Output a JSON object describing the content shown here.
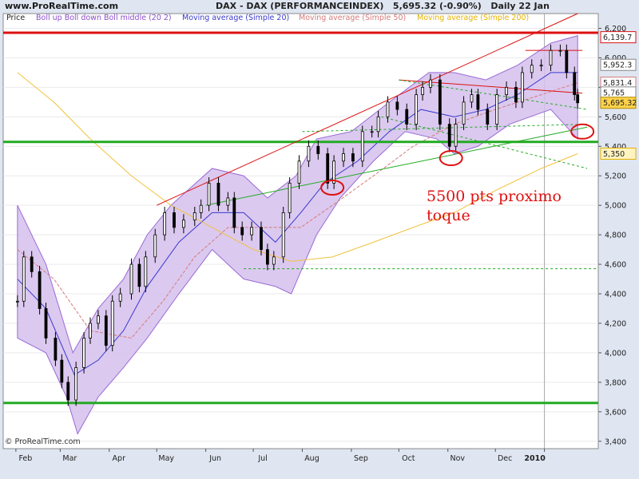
{
  "header": {
    "site": "www.ProRealTime.com",
    "title_instrument": "DAX - DAX (PERFORMANCEINDEX)",
    "title_last": "5,695.32 (-0.90%)",
    "title_period": "Daily 22 Jan"
  },
  "legend": {
    "price": "Price",
    "boll": "Boll up Boll down Boll middle (20 2)",
    "ma20": "Moving average (Simple 20)",
    "ma50": "Moving average (Simple 50)",
    "ma200": "Moving average (Simple 200)"
  },
  "footer": {
    "copyright": "© ProRealTime.com"
  },
  "annotation": {
    "line1": "5500 pts proximo",
    "line2": "toque"
  },
  "colors": {
    "price": "#000000",
    "boll_fill": "#d5c0ec",
    "boll_line": "#9b6bd6",
    "ma20": "#3a3ad0",
    "ma50": "#d67a7a",
    "ma200": "#f2c23c",
    "support": "#22aa22",
    "resistance": "#dd1111",
    "background": "#ffffff",
    "panel": "#dfe6f1"
  },
  "chart_data": {
    "type": "candlestick",
    "ylim": [
      3350,
      6300
    ],
    "y_ticks": [
      "3,400",
      "3,600",
      "3,800",
      "4,000",
      "4,200",
      "4,400",
      "4,600",
      "4,800",
      "5,000",
      "5,200",
      "5,400",
      "5,600",
      "5,800",
      "6,000",
      "6,200"
    ],
    "x_ticks": [
      "Feb",
      "Mar",
      "Apr",
      "May",
      "Jun",
      "Jul",
      "Aug",
      "Sep",
      "Oct",
      "Nov",
      "Dec",
      "2010"
    ],
    "price_labels": [
      {
        "text": "6,139.7",
        "value": 6139.7,
        "kind": "resistance"
      },
      {
        "text": "5,952.3",
        "value": 5952.3,
        "kind": "normal"
      },
      {
        "text": "5,831.4",
        "value": 5831.4,
        "kind": "ma50"
      },
      {
        "text": "5,765",
        "value": 5765,
        "kind": "normal"
      },
      {
        "text": "5,695.32",
        "value": 5695.32,
        "kind": "last"
      },
      {
        "text": "5,350",
        "value": 5350,
        "kind": "ma200"
      }
    ],
    "close_series": [
      [
        "2009-02-02",
        4350
      ],
      [
        "2009-02-06",
        4650
      ],
      [
        "2009-02-11",
        4550
      ],
      [
        "2009-02-16",
        4300
      ],
      [
        "2009-02-20",
        4100
      ],
      [
        "2009-02-26",
        3950
      ],
      [
        "2009-03-02",
        3800
      ],
      [
        "2009-03-06",
        3680
      ],
      [
        "2009-03-11",
        3900
      ],
      [
        "2009-03-16",
        4100
      ],
      [
        "2009-03-20",
        4200
      ],
      [
        "2009-03-25",
        4250
      ],
      [
        "2009-03-30",
        4050
      ],
      [
        "2009-04-03",
        4350
      ],
      [
        "2009-04-08",
        4400
      ],
      [
        "2009-04-15",
        4600
      ],
      [
        "2009-04-20",
        4450
      ],
      [
        "2009-04-24",
        4650
      ],
      [
        "2009-04-30",
        4800
      ],
      [
        "2009-05-06",
        4950
      ],
      [
        "2009-05-12",
        4850
      ],
      [
        "2009-05-18",
        4900
      ],
      [
        "2009-05-25",
        4950
      ],
      [
        "2009-05-29",
        5000
      ],
      [
        "2009-06-03",
        5150
      ],
      [
        "2009-06-09",
        5000
      ],
      [
        "2009-06-15",
        5050
      ],
      [
        "2009-06-19",
        4850
      ],
      [
        "2009-06-24",
        4800
      ],
      [
        "2009-06-30",
        4850
      ],
      [
        "2009-07-06",
        4700
      ],
      [
        "2009-07-10",
        4600
      ],
      [
        "2009-07-14",
        4650
      ],
      [
        "2009-07-20",
        4950
      ],
      [
        "2009-07-24",
        5150
      ],
      [
        "2009-07-30",
        5300
      ],
      [
        "2009-08-05",
        5400
      ],
      [
        "2009-08-11",
        5350
      ],
      [
        "2009-08-17",
        5150
      ],
      [
        "2009-08-21",
        5300
      ],
      [
        "2009-08-27",
        5350
      ],
      [
        "2009-09-02",
        5300
      ],
      [
        "2009-09-08",
        5500
      ],
      [
        "2009-09-14",
        5500
      ],
      [
        "2009-09-18",
        5600
      ],
      [
        "2009-09-24",
        5700
      ],
      [
        "2009-09-30",
        5650
      ],
      [
        "2009-10-06",
        5550
      ],
      [
        "2009-10-12",
        5750
      ],
      [
        "2009-10-16",
        5800
      ],
      [
        "2009-10-21",
        5850
      ],
      [
        "2009-10-27",
        5550
      ],
      [
        "2009-11-02",
        5400
      ],
      [
        "2009-11-06",
        5550
      ],
      [
        "2009-11-11",
        5700
      ],
      [
        "2009-11-16",
        5750
      ],
      [
        "2009-11-20",
        5650
      ],
      [
        "2009-11-26",
        5550
      ],
      [
        "2009-12-02",
        5750
      ],
      [
        "2009-12-08",
        5800
      ],
      [
        "2009-12-14",
        5700
      ],
      [
        "2009-12-18",
        5900
      ],
      [
        "2009-12-24",
        5950
      ],
      [
        "2009-12-30",
        5950
      ],
      [
        "2010-01-05",
        6050
      ],
      [
        "2010-01-11",
        6050
      ],
      [
        "2010-01-15",
        5900
      ],
      [
        "2010-01-20",
        5750
      ],
      [
        "2010-01-22",
        5695
      ]
    ],
    "boll_upper": [
      [
        "2009-02-02",
        5000
      ],
      [
        "2009-02-20",
        4600
      ],
      [
        "2009-03-09",
        4000
      ],
      [
        "2009-03-25",
        4300
      ],
      [
        "2009-04-10",
        4500
      ],
      [
        "2009-04-25",
        4800
      ],
      [
        "2009-05-10",
        5000
      ],
      [
        "2009-06-05",
        5250
      ],
      [
        "2009-06-25",
        5200
      ],
      [
        "2009-07-10",
        5050
      ],
      [
        "2009-07-28",
        5200
      ],
      [
        "2009-08-10",
        5450
      ],
      [
        "2009-09-01",
        5500
      ],
      [
        "2009-09-25",
        5700
      ],
      [
        "2009-10-20",
        5900
      ],
      [
        "2009-11-05",
        5900
      ],
      [
        "2009-11-25",
        5850
      ],
      [
        "2009-12-15",
        5950
      ],
      [
        "2010-01-05",
        6100
      ],
      [
        "2010-01-22",
        6150
      ]
    ],
    "boll_lower": [
      [
        "2009-02-02",
        4100
      ],
      [
        "2009-02-20",
        4000
      ],
      [
        "2009-03-05",
        3700
      ],
      [
        "2009-03-12",
        3450
      ],
      [
        "2009-03-25",
        3700
      ],
      [
        "2009-04-10",
        3900
      ],
      [
        "2009-04-25",
        4100
      ],
      [
        "2009-05-15",
        4400
      ],
      [
        "2009-06-05",
        4700
      ],
      [
        "2009-06-25",
        4500
      ],
      [
        "2009-07-15",
        4450
      ],
      [
        "2009-07-25",
        4400
      ],
      [
        "2009-08-10",
        4800
      ],
      [
        "2009-08-25",
        5050
      ],
      [
        "2009-09-15",
        5300
      ],
      [
        "2009-10-05",
        5500
      ],
      [
        "2009-10-25",
        5450
      ],
      [
        "2009-11-05",
        5350
      ],
      [
        "2009-11-20",
        5400
      ],
      [
        "2009-12-10",
        5550
      ],
      [
        "2010-01-05",
        5650
      ],
      [
        "2010-01-22",
        5450
      ]
    ],
    "ma20": [
      [
        "2009-02-02",
        4500
      ],
      [
        "2009-02-20",
        4300
      ],
      [
        "2009-03-10",
        3850
      ],
      [
        "2009-03-25",
        3950
      ],
      [
        "2009-04-10",
        4150
      ],
      [
        "2009-04-25",
        4450
      ],
      [
        "2009-05-15",
        4750
      ],
      [
        "2009-06-05",
        4950
      ],
      [
        "2009-06-25",
        4950
      ],
      [
        "2009-07-15",
        4750
      ],
      [
        "2009-07-31",
        4950
      ],
      [
        "2009-08-15",
        5150
      ],
      [
        "2009-09-05",
        5300
      ],
      [
        "2009-09-25",
        5500
      ],
      [
        "2009-10-15",
        5650
      ],
      [
        "2009-11-05",
        5600
      ],
      [
        "2009-11-25",
        5650
      ],
      [
        "2009-12-15",
        5750
      ],
      [
        "2010-01-05",
        5900
      ],
      [
        "2010-01-22",
        5900
      ]
    ],
    "ma50": [
      [
        "2009-02-02",
        4700
      ],
      [
        "2009-02-25",
        4500
      ],
      [
        "2009-03-20",
        4150
      ],
      [
        "2009-04-15",
        4100
      ],
      [
        "2009-05-05",
        4350
      ],
      [
        "2009-05-25",
        4650
      ],
      [
        "2009-06-15",
        4850
      ],
      [
        "2009-07-10",
        4850
      ],
      [
        "2009-07-31",
        4850
      ],
      [
        "2009-08-20",
        5000
      ],
      [
        "2009-09-15",
        5200
      ],
      [
        "2009-10-10",
        5400
      ],
      [
        "2009-11-05",
        5550
      ],
      [
        "2009-12-01",
        5650
      ],
      [
        "2009-12-30",
        5750
      ],
      [
        "2010-01-22",
        5831
      ]
    ],
    "ma200": [
      [
        "2009-02-02",
        5900
      ],
      [
        "2009-02-25",
        5700
      ],
      [
        "2009-03-20",
        5450
      ],
      [
        "2009-04-15",
        5200
      ],
      [
        "2009-05-10",
        5000
      ],
      [
        "2009-06-05",
        4850
      ],
      [
        "2009-07-01",
        4700
      ],
      [
        "2009-07-25",
        4620
      ],
      [
        "2009-08-20",
        4650
      ],
      [
        "2009-09-15",
        4750
      ],
      [
        "2009-10-10",
        4850
      ],
      [
        "2009-11-05",
        4950
      ],
      [
        "2009-12-01",
        5100
      ],
      [
        "2009-12-30",
        5250
      ],
      [
        "2010-01-22",
        5350
      ]
    ],
    "hlines": [
      {
        "value": 6170,
        "kind": "resistance",
        "style": "solid"
      },
      {
        "value": 5430,
        "kind": "support",
        "style": "solid"
      },
      {
        "value": 3660,
        "kind": "support",
        "style": "solid"
      },
      {
        "value": 4570,
        "kind": "support",
        "style": "dashed"
      }
    ],
    "trendlines": [
      {
        "p1": [
          "2009-05-01",
          5000
        ],
        "p2": [
          "2010-01-22",
          6300
        ],
        "kind": "resistance"
      },
      {
        "p1": [
          "2009-10-01",
          5850
        ],
        "p2": [
          "2010-01-25",
          5760
        ],
        "kind": "resistance"
      },
      {
        "p1": [
          "2009-12-20",
          6050
        ],
        "p2": [
          "2010-01-25",
          6050
        ],
        "kind": "resistance"
      },
      {
        "p1": [
          "2009-06-01",
          5000
        ],
        "p2": [
          "2010-01-28",
          5530
        ],
        "kind": "support"
      },
      {
        "p1": [
          "2009-08-01",
          5500
        ],
        "p2": [
          "2010-01-28",
          5550
        ],
        "kind": "support",
        "style": "dashed"
      },
      {
        "p1": [
          "2009-09-20",
          5600
        ],
        "p2": [
          "2010-01-28",
          5250
        ],
        "kind": "support",
        "style": "dashed"
      },
      {
        "p1": [
          "2009-10-01",
          5850
        ],
        "p2": [
          "2010-01-28",
          5650
        ],
        "kind": "support",
        "style": "dashed"
      }
    ],
    "circles": [
      {
        "date": "2009-08-20",
        "value": 5120
      },
      {
        "date": "2009-11-03",
        "value": 5320
      },
      {
        "date": "2010-01-25",
        "value": 5500
      }
    ]
  }
}
